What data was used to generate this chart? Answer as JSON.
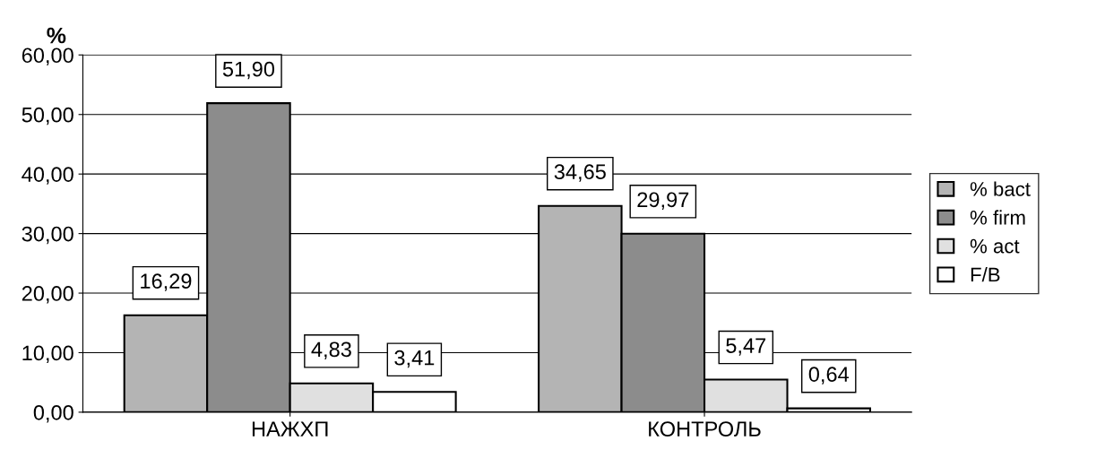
{
  "chart_data": {
    "type": "bar",
    "ylabel": "%",
    "categories": [
      "НАЖХП",
      "КОНТРОЛЬ"
    ],
    "series": [
      {
        "name": "% bact",
        "color": "#b4b4b4",
        "values": [
          16.29,
          34.65
        ],
        "value_labels": [
          "16,29",
          "34,65"
        ]
      },
      {
        "name": "% firm",
        "color": "#8c8c8c",
        "values": [
          51.9,
          29.97
        ],
        "value_labels": [
          "51,90",
          "29,97"
        ]
      },
      {
        "name": "% act",
        "color": "#e0e0e0",
        "values": [
          4.83,
          5.47
        ],
        "value_labels": [
          "4,83",
          "5,47"
        ]
      },
      {
        "name": "F/B",
        "color": "#ffffff",
        "values": [
          3.41,
          0.64
        ],
        "value_labels": [
          "3,41",
          "0,64"
        ]
      }
    ],
    "ylim": [
      0,
      60
    ],
    "yticks": [
      {
        "value": 0,
        "label": "0,00"
      },
      {
        "value": 10,
        "label": "10,00"
      },
      {
        "value": 20,
        "label": "20,00"
      },
      {
        "value": 30,
        "label": "30,00"
      },
      {
        "value": 40,
        "label": "40,00"
      },
      {
        "value": 50,
        "label": "50,00"
      },
      {
        "value": 60,
        "label": "60,00"
      }
    ],
    "grid": "y",
    "legend": "right"
  }
}
